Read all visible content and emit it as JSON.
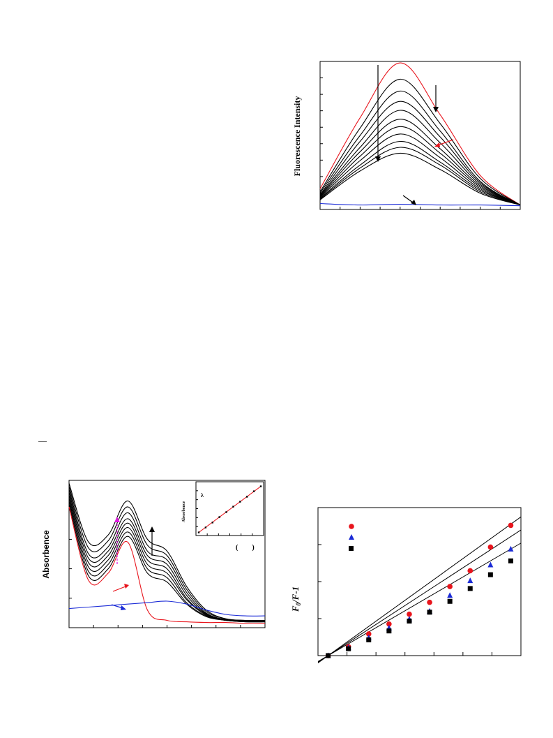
{
  "chart_data": [
    {
      "id": "fluorescence",
      "type": "line",
      "title": "",
      "xlabel": "",
      "ylabel": "Fluorescence Intensity",
      "x": [
        0,
        2,
        4,
        6,
        8,
        10
      ],
      "xlim": [
        0,
        10
      ],
      "ylim": [
        0,
        10
      ],
      "grid": false,
      "series": [
        {
          "color": "#e8141c",
          "values": [
            1.4,
            6.2,
            9.9,
            6.4,
            2.3,
            0.3
          ]
        },
        {
          "color": "#000000",
          "values": [
            1.2,
            5.5,
            8.8,
            5.8,
            2.1,
            0.3
          ]
        },
        {
          "color": "#000000",
          "values": [
            1.1,
            5.0,
            8.0,
            5.3,
            1.9,
            0.3
          ]
        },
        {
          "color": "#000000",
          "values": [
            1.0,
            4.6,
            7.3,
            4.9,
            1.8,
            0.3
          ]
        },
        {
          "color": "#000000",
          "values": [
            0.95,
            4.2,
            6.7,
            4.5,
            1.7,
            0.3
          ]
        },
        {
          "color": "#000000",
          "values": [
            0.9,
            3.9,
            6.1,
            4.1,
            1.6,
            0.3
          ]
        },
        {
          "color": "#000000",
          "values": [
            0.85,
            3.6,
            5.6,
            3.8,
            1.5,
            0.3
          ]
        },
        {
          "color": "#000000",
          "values": [
            0.8,
            3.3,
            5.1,
            3.5,
            1.4,
            0.3
          ]
        },
        {
          "color": "#000000",
          "values": [
            0.75,
            3.0,
            4.6,
            3.2,
            1.3,
            0.3
          ]
        },
        {
          "color": "#000000",
          "values": [
            0.7,
            2.8,
            4.2,
            3.0,
            1.2,
            0.3
          ]
        },
        {
          "color": "#000000",
          "values": [
            0.65,
            2.6,
            3.8,
            2.7,
            1.1,
            0.3
          ]
        },
        {
          "color": "#1b2bd6",
          "values": [
            0.4,
            0.3,
            0.35,
            0.3,
            0.3,
            0.25
          ]
        }
      ]
    },
    {
      "id": "stern_volmer",
      "type": "scatter",
      "title": "",
      "xlabel": "",
      "ylabel": "F0/F-1",
      "xlim": [
        0,
        10
      ],
      "ylim": [
        0,
        7.5
      ],
      "grid": false,
      "series": [
        {
          "marker": "circle",
          "color": "#e8141c",
          "fit": [
            0.0,
            0.74
          ],
          "points": [
            [
              0.5,
              0.0
            ],
            [
              1.5,
              0.45
            ],
            [
              2.5,
              1.1
            ],
            [
              3.5,
              1.6
            ],
            [
              4.5,
              2.1
            ],
            [
              5.5,
              2.7
            ],
            [
              6.5,
              3.5
            ],
            [
              7.5,
              4.3
            ],
            [
              8.5,
              5.5
            ],
            [
              9.5,
              6.6
            ]
          ]
        },
        {
          "marker": "triangle",
          "color": "#1b2bd6",
          "fit": [
            0.0,
            0.67
          ],
          "points": [
            [
              0.5,
              0.0
            ],
            [
              1.5,
              0.4
            ],
            [
              2.5,
              0.9
            ],
            [
              3.5,
              1.4
            ],
            [
              4.5,
              1.85
            ],
            [
              5.5,
              2.25
            ],
            [
              6.5,
              3.05
            ],
            [
              7.5,
              3.8
            ],
            [
              8.5,
              4.6
            ],
            [
              9.5,
              5.4
            ]
          ]
        },
        {
          "marker": "square",
          "color": "#000000",
          "fit": [
            0.0,
            0.6
          ],
          "points": [
            [
              0.5,
              0.0
            ],
            [
              1.5,
              0.35
            ],
            [
              2.5,
              0.8
            ],
            [
              3.5,
              1.25
            ],
            [
              4.5,
              1.75
            ],
            [
              5.5,
              2.2
            ],
            [
              6.5,
              2.75
            ],
            [
              7.5,
              3.4
            ],
            [
              8.5,
              4.1
            ],
            [
              9.5,
              4.8
            ]
          ]
        }
      ]
    },
    {
      "id": "absorbance",
      "type": "line",
      "title": "",
      "xlabel": "",
      "ylabel": "Absorbence",
      "x": [
        0,
        1,
        2,
        3,
        4,
        5,
        6,
        7,
        8,
        9,
        10
      ],
      "xlim": [
        0,
        10
      ],
      "ylim": [
        0,
        10
      ],
      "grid": false,
      "series": [
        {
          "color": "#000000",
          "values": [
            9.8,
            5.8,
            6.3,
            8.6,
            6.0,
            5.2,
            2.8,
            1.2,
            0.6,
            0.5,
            0.5
          ]
        },
        {
          "color": "#000000",
          "values": [
            9.6,
            5.4,
            5.9,
            8.2,
            5.6,
            4.9,
            2.6,
            1.1,
            0.6,
            0.5,
            0.5
          ]
        },
        {
          "color": "#000000",
          "values": [
            9.4,
            5.0,
            5.5,
            7.8,
            5.2,
            4.6,
            2.4,
            1.0,
            0.55,
            0.45,
            0.45
          ]
        },
        {
          "color": "#000000",
          "values": [
            9.2,
            4.7,
            5.2,
            7.4,
            4.9,
            4.3,
            2.2,
            0.95,
            0.55,
            0.45,
            0.45
          ]
        },
        {
          "color": "#000000",
          "values": [
            9.0,
            4.4,
            4.9,
            7.1,
            4.6,
            4.0,
            2.0,
            0.9,
            0.5,
            0.45,
            0.45
          ]
        },
        {
          "color": "#000000",
          "values": [
            8.8,
            4.1,
            4.6,
            6.8,
            4.3,
            3.7,
            1.9,
            0.85,
            0.5,
            0.45,
            0.45
          ]
        },
        {
          "color": "#000000",
          "values": [
            8.6,
            3.8,
            4.3,
            6.5,
            4.0,
            3.4,
            1.7,
            0.8,
            0.5,
            0.4,
            0.4
          ]
        },
        {
          "color": "#000000",
          "values": [
            8.4,
            3.5,
            4.0,
            6.2,
            3.7,
            3.1,
            1.6,
            0.75,
            0.5,
            0.4,
            0.4
          ]
        },
        {
          "color": "#e8141c",
          "values": [
            8.2,
            3.2,
            3.7,
            5.8,
            1.2,
            0.5,
            0.4,
            0.35,
            0.35,
            0.3,
            0.3
          ]
        },
        {
          "color": "#1b2bd6",
          "values": [
            1.3,
            1.4,
            1.5,
            1.6,
            1.7,
            1.8,
            1.6,
            1.2,
            0.9,
            0.8,
            0.8
          ]
        }
      ],
      "inset": {
        "ylabel": "Absorbence",
        "marker_label": "λ",
        "bracket_text": "(        )",
        "type": "scatter",
        "line_color": "#e8141c",
        "points": [
          [
            0,
            0.2
          ],
          [
            1,
            1.2
          ],
          [
            2,
            2.2
          ],
          [
            3,
            3.3
          ],
          [
            4,
            4.3
          ],
          [
            5,
            5.4
          ],
          [
            6,
            6.4
          ],
          [
            7,
            7.4
          ],
          [
            8,
            8.5
          ],
          [
            9,
            9.5
          ]
        ],
        "xlim": [
          0,
          9
        ],
        "ylim": [
          0,
          10
        ]
      }
    }
  ],
  "stray_dash": "—"
}
